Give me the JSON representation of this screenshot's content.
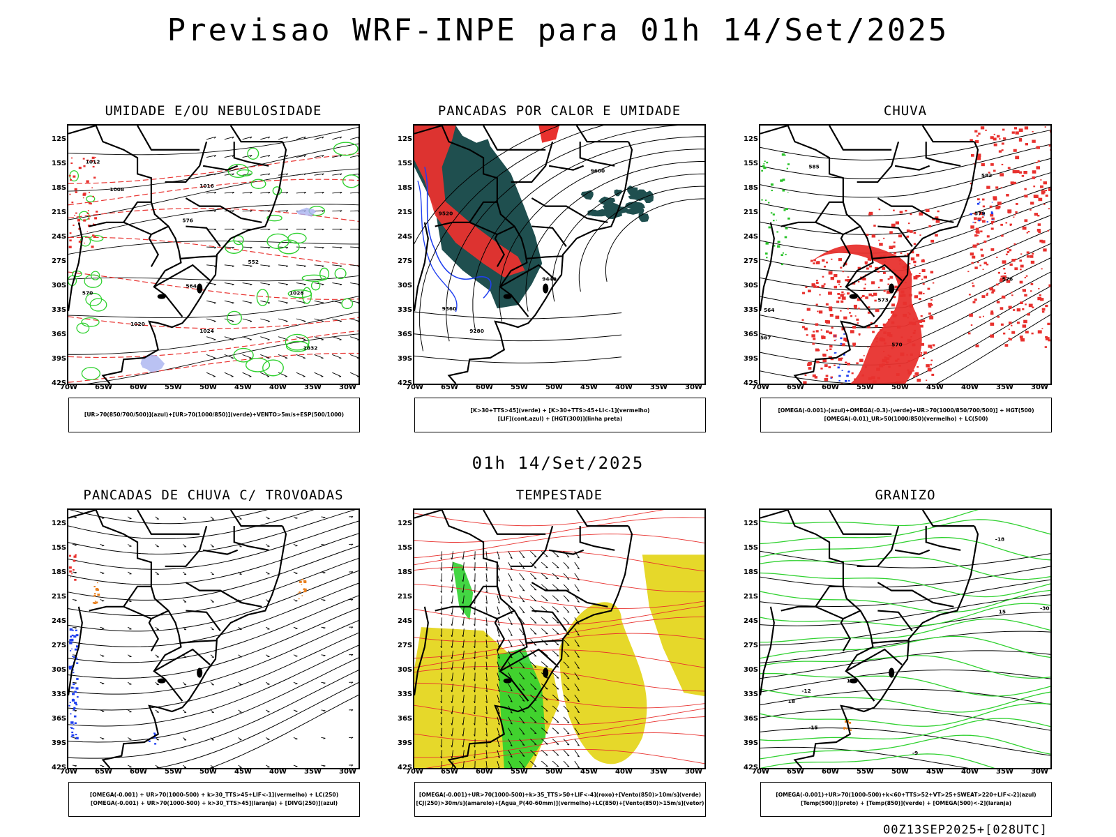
{
  "header": {
    "title": "Previsao WRF-INPE  para 01h 14/Set/2025",
    "mid_title": "01h 14/Set/2025",
    "run_id": "00Z13SEP2025+[028UTC]"
  },
  "axes": {
    "lat_labels": [
      "12S",
      "15S",
      "18S",
      "21S",
      "24S",
      "27S",
      "30S",
      "33S",
      "36S",
      "39S",
      "42S"
    ],
    "lon_labels": [
      "70W",
      "65W",
      "60W",
      "55W",
      "50W",
      "45W",
      "40W",
      "35W",
      "30W"
    ]
  },
  "colors": {
    "red": "#e8312e",
    "green": "#2fd12f",
    "blue": "#2040f0",
    "yellow": "#e6d82a",
    "teal": "#1f4f4f",
    "orange": "#e8801f"
  },
  "panels": [
    {
      "id": "umidade",
      "title": "UMIDADE E/OU NEBULOSIDADE",
      "legend": [
        "[UR>70(850/700/500)](azul)+[UR>70(1000/850)](verde)+VENTO>5m/s+ESP(500/1000)"
      ],
      "contour_labels": [
        "1008",
        "1012",
        "1016",
        "1020",
        "1024",
        "1028",
        "1032",
        "552",
        "564",
        "570",
        "576"
      ]
    },
    {
      "id": "pancadas-calor",
      "title": "PANCADAS POR CALOR E UMIDADE",
      "legend": [
        "[K>30+TTS>45](verde) + [K>30+TTS>45+LI<-1](vermelho)",
        "[LIF](cont.azul) + [HGT(300)](linha preta)"
      ],
      "contour_labels": [
        "9600",
        "9520",
        "9440",
        "9360",
        "9280"
      ]
    },
    {
      "id": "chuva",
      "title": "CHUVA",
      "legend": [
        "[OMEGA(-0.001)-(azul)+OMEGA(-0.3)-(verde)+UR>70(1000/850/700/500)] + HGT(500)",
        "[OMEGA(-0.01)_UR>50(1000/850)(vermelho) + LC(500)"
      ],
      "contour_labels": [
        "585",
        "582",
        "579",
        "576",
        "573",
        "570",
        "567",
        "564"
      ]
    },
    {
      "id": "trovoadas",
      "title": "PANCADAS DE CHUVA C/ TROVOADAS",
      "legend": [
        "[OMEGA(-0.001) + UR>70(1000-500) + k>30_TTS>45+LIF<-1](vermelho) + LC(250)",
        "[OMEGA(-0.001) + UR>70(1000-500) + k>30_TTS>45](laranja) + [DIVG(250)](azul)"
      ],
      "contour_labels": []
    },
    {
      "id": "tempestade",
      "title": "TEMPESTADE",
      "legend": [
        "[OMEGA(-0.001)+UR>70(1000-500)+k>35_TTS>50+LIF<-4](roxo)+[Vento(850)>10m/s](verde)",
        "[CJ(250)>30m/s](amarelo)+[Agua_P(40-60mm)](vermelho)+LC(850)+[Vento(850)>15m/s](vetor)"
      ],
      "contour_labels": []
    },
    {
      "id": "granizo",
      "title": "GRANIZO",
      "legend": [
        "[OMEGA(-0.001)+UR>70(1000-500)+k<60+TTS>52+VT>25+SWEAT>220+LIF<-2](azul)",
        "[Temp(500)](preto) + [Temp(850)](verde) + [OMEGA(500)<-2](laranja)"
      ],
      "contour_labels": [
        "-12",
        "-15",
        "-18",
        "-9",
        "-30",
        "12",
        "15",
        "18"
      ]
    }
  ]
}
